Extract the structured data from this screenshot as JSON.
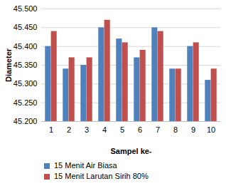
{
  "chart_data": {
    "type": "bar",
    "y_label": "Diameter",
    "x_label": "Sampel ke-",
    "categories": [
      "1",
      "2",
      "3",
      "4",
      "5",
      "6",
      "7",
      "8",
      "9",
      "10"
    ],
    "series": [
      {
        "name": "15 Menit Air Biasa",
        "color": "#4f81bd",
        "values": [
          45.4,
          45.34,
          45.35,
          45.45,
          45.42,
          45.37,
          45.45,
          45.34,
          45.4,
          45.31
        ]
      },
      {
        "name": "15 Menit Larutan Sirih 80%",
        "color": "#c0504d",
        "values": [
          45.44,
          45.37,
          45.37,
          45.47,
          45.41,
          45.39,
          45.44,
          45.34,
          45.41,
          45.34
        ]
      }
    ],
    "ylim": [
      45.2,
      45.5
    ],
    "yticks": [
      {
        "value": 45.2,
        "label": "45.200"
      },
      {
        "value": 45.25,
        "label": "45.250"
      },
      {
        "value": 45.3,
        "label": "45.300"
      },
      {
        "value": 45.35,
        "label": "45.350"
      },
      {
        "value": 45.4,
        "label": "45.400"
      },
      {
        "value": 45.45,
        "label": "45.450"
      },
      {
        "value": 45.5,
        "label": "45.500"
      }
    ],
    "grid": true,
    "legend": "bottom"
  }
}
